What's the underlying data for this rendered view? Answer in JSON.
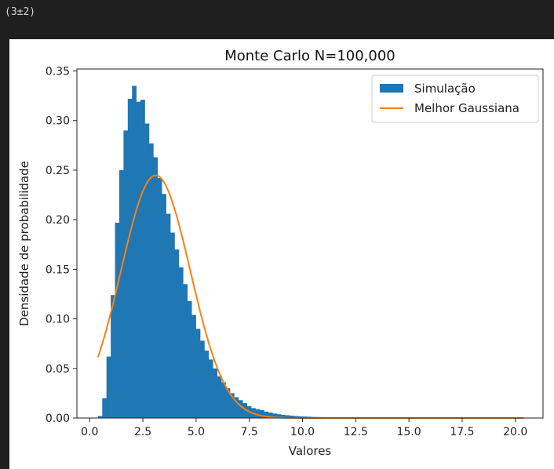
{
  "cell_output": {
    "text": "(3±2)"
  },
  "chart_data": {
    "type": "bar",
    "title": "Monte Carlo N=100,000",
    "xlabel": "Valores",
    "ylabel": "Densidade de probabilidade",
    "xlim": [
      -0.6,
      21.3
    ],
    "ylim": [
      0,
      0.352
    ],
    "xticks": [
      0.0,
      2.5,
      5.0,
      7.5,
      10.0,
      12.5,
      15.0,
      17.5,
      20.0
    ],
    "xtick_labels": [
      "0.0",
      "2.5",
      "5.0",
      "7.5",
      "10.0",
      "12.5",
      "15.0",
      "17.5",
      "20.0"
    ],
    "yticks": [
      0.0,
      0.05,
      0.1,
      0.15,
      0.2,
      0.25,
      0.3,
      0.35
    ],
    "ytick_labels": [
      "0.00",
      "0.05",
      "0.10",
      "0.15",
      "0.20",
      "0.25",
      "0.30",
      "0.35"
    ],
    "legend_position": "upper right",
    "series": [
      {
        "name": "Simulação",
        "kind": "histogram",
        "color": "#1f77b4",
        "bin_start": 0.39,
        "bin_width": 0.2,
        "values": [
          0.002,
          0.02,
          0.062,
          0.124,
          0.197,
          0.25,
          0.29,
          0.322,
          0.335,
          0.319,
          0.321,
          0.297,
          0.277,
          0.263,
          0.242,
          0.226,
          0.206,
          0.187,
          0.17,
          0.152,
          0.135,
          0.118,
          0.104,
          0.09,
          0.078,
          0.068,
          0.059,
          0.05,
          0.042,
          0.036,
          0.03,
          0.025,
          0.021,
          0.018,
          0.015,
          0.012,
          0.01,
          0.009,
          0.008,
          0.0065,
          0.0055,
          0.0045,
          0.0038,
          0.0032,
          0.0028,
          0.0024,
          0.002,
          0.0017,
          0.0015,
          0.0013,
          0.0011,
          0.001,
          0.0009,
          0.0008,
          0.0007,
          0.0006,
          0.0005,
          0.0005,
          0.0004,
          0.0004,
          0.0003,
          0.0003,
          0.0003,
          0.0002,
          0.0002,
          0.0002,
          0.0002,
          0.0001,
          0.0001,
          0.0001,
          0.0001,
          0.0001,
          0.0001,
          0.0001,
          0.0001,
          0.0001,
          0.0001,
          0.0001,
          0.0001,
          0.0001,
          0.0001,
          0.0001,
          0.0001,
          0.0001,
          0.0001,
          0.0001,
          0.0001,
          0.0001,
          0.0001,
          0.0001,
          0.0001,
          0.0001,
          0.0001,
          0.0001,
          0.0001,
          0.0001,
          0.0001,
          0.0001,
          0.0001,
          0.0001
        ]
      },
      {
        "name": "Melhor Gaussiana",
        "kind": "line",
        "color": "#ff7f0e",
        "gaussian": {
          "mean": 3.1,
          "std": 1.63
        },
        "x_range": [
          0.39,
          20.39
        ]
      }
    ]
  }
}
